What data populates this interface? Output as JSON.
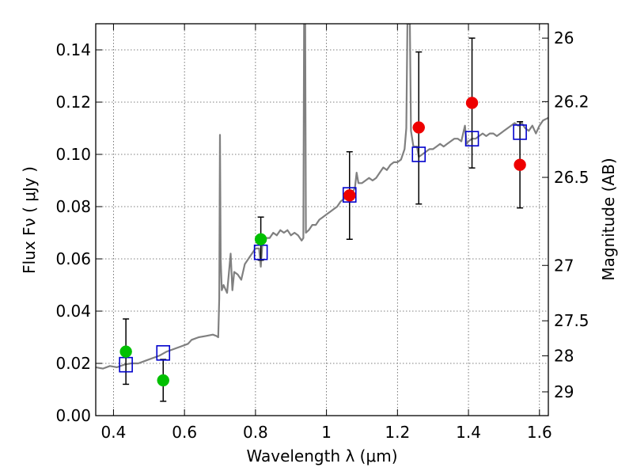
{
  "chart_data": {
    "type": "scatter",
    "xlabel": "Wavelength  λ (μm)",
    "ylabel": "Flux  Fν  ( μJy )",
    "ylabel_right": "Magnitude (AB)",
    "xlim": [
      0.35,
      1.625
    ],
    "ylim": [
      0,
      0.15
    ],
    "grid": true,
    "x_ticks": [
      0.4,
      0.6,
      0.8,
      1.0,
      1.2,
      1.4,
      1.6
    ],
    "x_tick_labels": [
      "0.4",
      "0.6",
      "0.8",
      "1",
      "1.2",
      "1.4",
      "1.6"
    ],
    "y_ticks": [
      0,
      0.02,
      0.04,
      0.06,
      0.08,
      0.1,
      0.12,
      0.14
    ],
    "y_tick_labels": [
      "0.00",
      "0.02",
      "0.04",
      "0.06",
      "0.08",
      "0.10",
      "0.12",
      "0.14"
    ],
    "right_ticks": [
      {
        "label": "26",
        "flux": 0.1445
      },
      {
        "label": "26.2",
        "flux": 0.1202
      },
      {
        "label": "26.5",
        "flux": 0.0912
      },
      {
        "label": "27",
        "flux": 0.0575
      },
      {
        "label": "27.5",
        "flux": 0.0363
      },
      {
        "label": "28",
        "flux": 0.0229
      },
      {
        "label": "29",
        "flux": 0.0091
      }
    ],
    "colors": {
      "template": "#808080",
      "model": "#0000cc",
      "green": "#00c000",
      "red": "#ee0000",
      "errorbar": "#000000"
    },
    "series": [
      {
        "kind": "template-spectrum",
        "points": [
          [
            0.35,
            0.0185
          ],
          [
            0.37,
            0.018
          ],
          [
            0.39,
            0.019
          ],
          [
            0.41,
            0.0185
          ],
          [
            0.43,
            0.0195
          ],
          [
            0.45,
            0.02
          ],
          [
            0.47,
            0.02
          ],
          [
            0.49,
            0.021
          ],
          [
            0.51,
            0.022
          ],
          [
            0.53,
            0.023
          ],
          [
            0.55,
            0.0245
          ],
          [
            0.57,
            0.0255
          ],
          [
            0.59,
            0.0265
          ],
          [
            0.61,
            0.0275
          ],
          [
            0.62,
            0.029
          ],
          [
            0.64,
            0.03
          ],
          [
            0.66,
            0.0305
          ],
          [
            0.68,
            0.031
          ],
          [
            0.69,
            0.0305
          ],
          [
            0.695,
            0.03
          ],
          [
            0.698,
            0.045
          ],
          [
            0.7,
            0.1075
          ],
          [
            0.702,
            0.06
          ],
          [
            0.705,
            0.048
          ],
          [
            0.71,
            0.05
          ],
          [
            0.72,
            0.047
          ],
          [
            0.73,
            0.062
          ],
          [
            0.735,
            0.048
          ],
          [
            0.74,
            0.055
          ],
          [
            0.75,
            0.054
          ],
          [
            0.76,
            0.052
          ],
          [
            0.77,
            0.058
          ],
          [
            0.78,
            0.06
          ],
          [
            0.79,
            0.062
          ],
          [
            0.8,
            0.064
          ],
          [
            0.81,
            0.064
          ],
          [
            0.815,
            0.057
          ],
          [
            0.82,
            0.067
          ],
          [
            0.83,
            0.068
          ],
          [
            0.84,
            0.068
          ],
          [
            0.85,
            0.07
          ],
          [
            0.86,
            0.069
          ],
          [
            0.87,
            0.071
          ],
          [
            0.88,
            0.07
          ],
          [
            0.89,
            0.071
          ],
          [
            0.9,
            0.069
          ],
          [
            0.91,
            0.07
          ],
          [
            0.92,
            0.069
          ],
          [
            0.93,
            0.067
          ],
          [
            0.935,
            0.068
          ],
          [
            0.937,
            0.15
          ],
          [
            0.94,
            0.15
          ],
          [
            0.942,
            0.07
          ],
          [
            0.95,
            0.071
          ],
          [
            0.96,
            0.073
          ],
          [
            0.97,
            0.073
          ],
          [
            0.98,
            0.075
          ],
          [
            0.99,
            0.076
          ],
          [
            1.0,
            0.077
          ],
          [
            1.01,
            0.078
          ],
          [
            1.02,
            0.079
          ],
          [
            1.03,
            0.08
          ],
          [
            1.04,
            0.082
          ],
          [
            1.05,
            0.083
          ],
          [
            1.06,
            0.084
          ],
          [
            1.07,
            0.085
          ],
          [
            1.08,
            0.087
          ],
          [
            1.085,
            0.093
          ],
          [
            1.09,
            0.089
          ],
          [
            1.1,
            0.089
          ],
          [
            1.11,
            0.09
          ],
          [
            1.12,
            0.091
          ],
          [
            1.13,
            0.09
          ],
          [
            1.14,
            0.091
          ],
          [
            1.15,
            0.093
          ],
          [
            1.16,
            0.095
          ],
          [
            1.17,
            0.094
          ],
          [
            1.18,
            0.096
          ],
          [
            1.19,
            0.097
          ],
          [
            1.2,
            0.097
          ],
          [
            1.21,
            0.098
          ],
          [
            1.22,
            0.102
          ],
          [
            1.225,
            0.11
          ],
          [
            1.228,
            0.15
          ],
          [
            1.235,
            0.15
          ],
          [
            1.238,
            0.109
          ],
          [
            1.245,
            0.103
          ],
          [
            1.255,
            0.103
          ],
          [
            1.26,
            0.099
          ],
          [
            1.27,
            0.1
          ],
          [
            1.28,
            0.101
          ],
          [
            1.29,
            0.102
          ],
          [
            1.3,
            0.102
          ],
          [
            1.31,
            0.103
          ],
          [
            1.32,
            0.104
          ],
          [
            1.33,
            0.103
          ],
          [
            1.34,
            0.104
          ],
          [
            1.35,
            0.105
          ],
          [
            1.36,
            0.106
          ],
          [
            1.37,
            0.106
          ],
          [
            1.38,
            0.105
          ],
          [
            1.385,
            0.108
          ],
          [
            1.39,
            0.111
          ],
          [
            1.395,
            0.104
          ],
          [
            1.4,
            0.105
          ],
          [
            1.41,
            0.106
          ],
          [
            1.42,
            0.106
          ],
          [
            1.43,
            0.107
          ],
          [
            1.44,
            0.108
          ],
          [
            1.45,
            0.107
          ],
          [
            1.46,
            0.108
          ],
          [
            1.47,
            0.108
          ],
          [
            1.48,
            0.107
          ],
          [
            1.49,
            0.108
          ],
          [
            1.5,
            0.109
          ],
          [
            1.51,
            0.11
          ],
          [
            1.52,
            0.111
          ],
          [
            1.53,
            0.112
          ],
          [
            1.54,
            0.111
          ],
          [
            1.55,
            0.112
          ],
          [
            1.56,
            0.11
          ],
          [
            1.57,
            0.109
          ],
          [
            1.58,
            0.111
          ],
          [
            1.59,
            0.108
          ],
          [
            1.6,
            0.111
          ],
          [
            1.61,
            0.113
          ],
          [
            1.625,
            0.114
          ]
        ]
      },
      {
        "kind": "model-photometry",
        "points": [
          [
            0.435,
            0.0195
          ],
          [
            0.54,
            0.024
          ],
          [
            0.815,
            0.0625
          ],
          [
            1.065,
            0.0845
          ],
          [
            1.26,
            0.1
          ],
          [
            1.41,
            0.106
          ],
          [
            1.545,
            0.1085
          ]
        ]
      },
      {
        "kind": "observed-green",
        "points": [
          {
            "x": 0.435,
            "y": 0.0245,
            "lo": 0.012,
            "hi": 0.037
          },
          {
            "x": 0.54,
            "y": 0.0135,
            "lo": 0.0055,
            "hi": 0.0215
          },
          {
            "x": 0.815,
            "y": 0.0675,
            "lo": 0.0595,
            "hi": 0.076
          }
        ]
      },
      {
        "kind": "observed-red",
        "points": [
          {
            "x": 1.065,
            "y": 0.0843,
            "lo": 0.0675,
            "hi": 0.101
          },
          {
            "x": 1.26,
            "y": 0.1103,
            "lo": 0.081,
            "hi": 0.1392
          },
          {
            "x": 1.41,
            "y": 0.1197,
            "lo": 0.0948,
            "hi": 0.1445
          },
          {
            "x": 1.545,
            "y": 0.096,
            "lo": 0.0795,
            "hi": 0.1125
          }
        ]
      }
    ]
  }
}
